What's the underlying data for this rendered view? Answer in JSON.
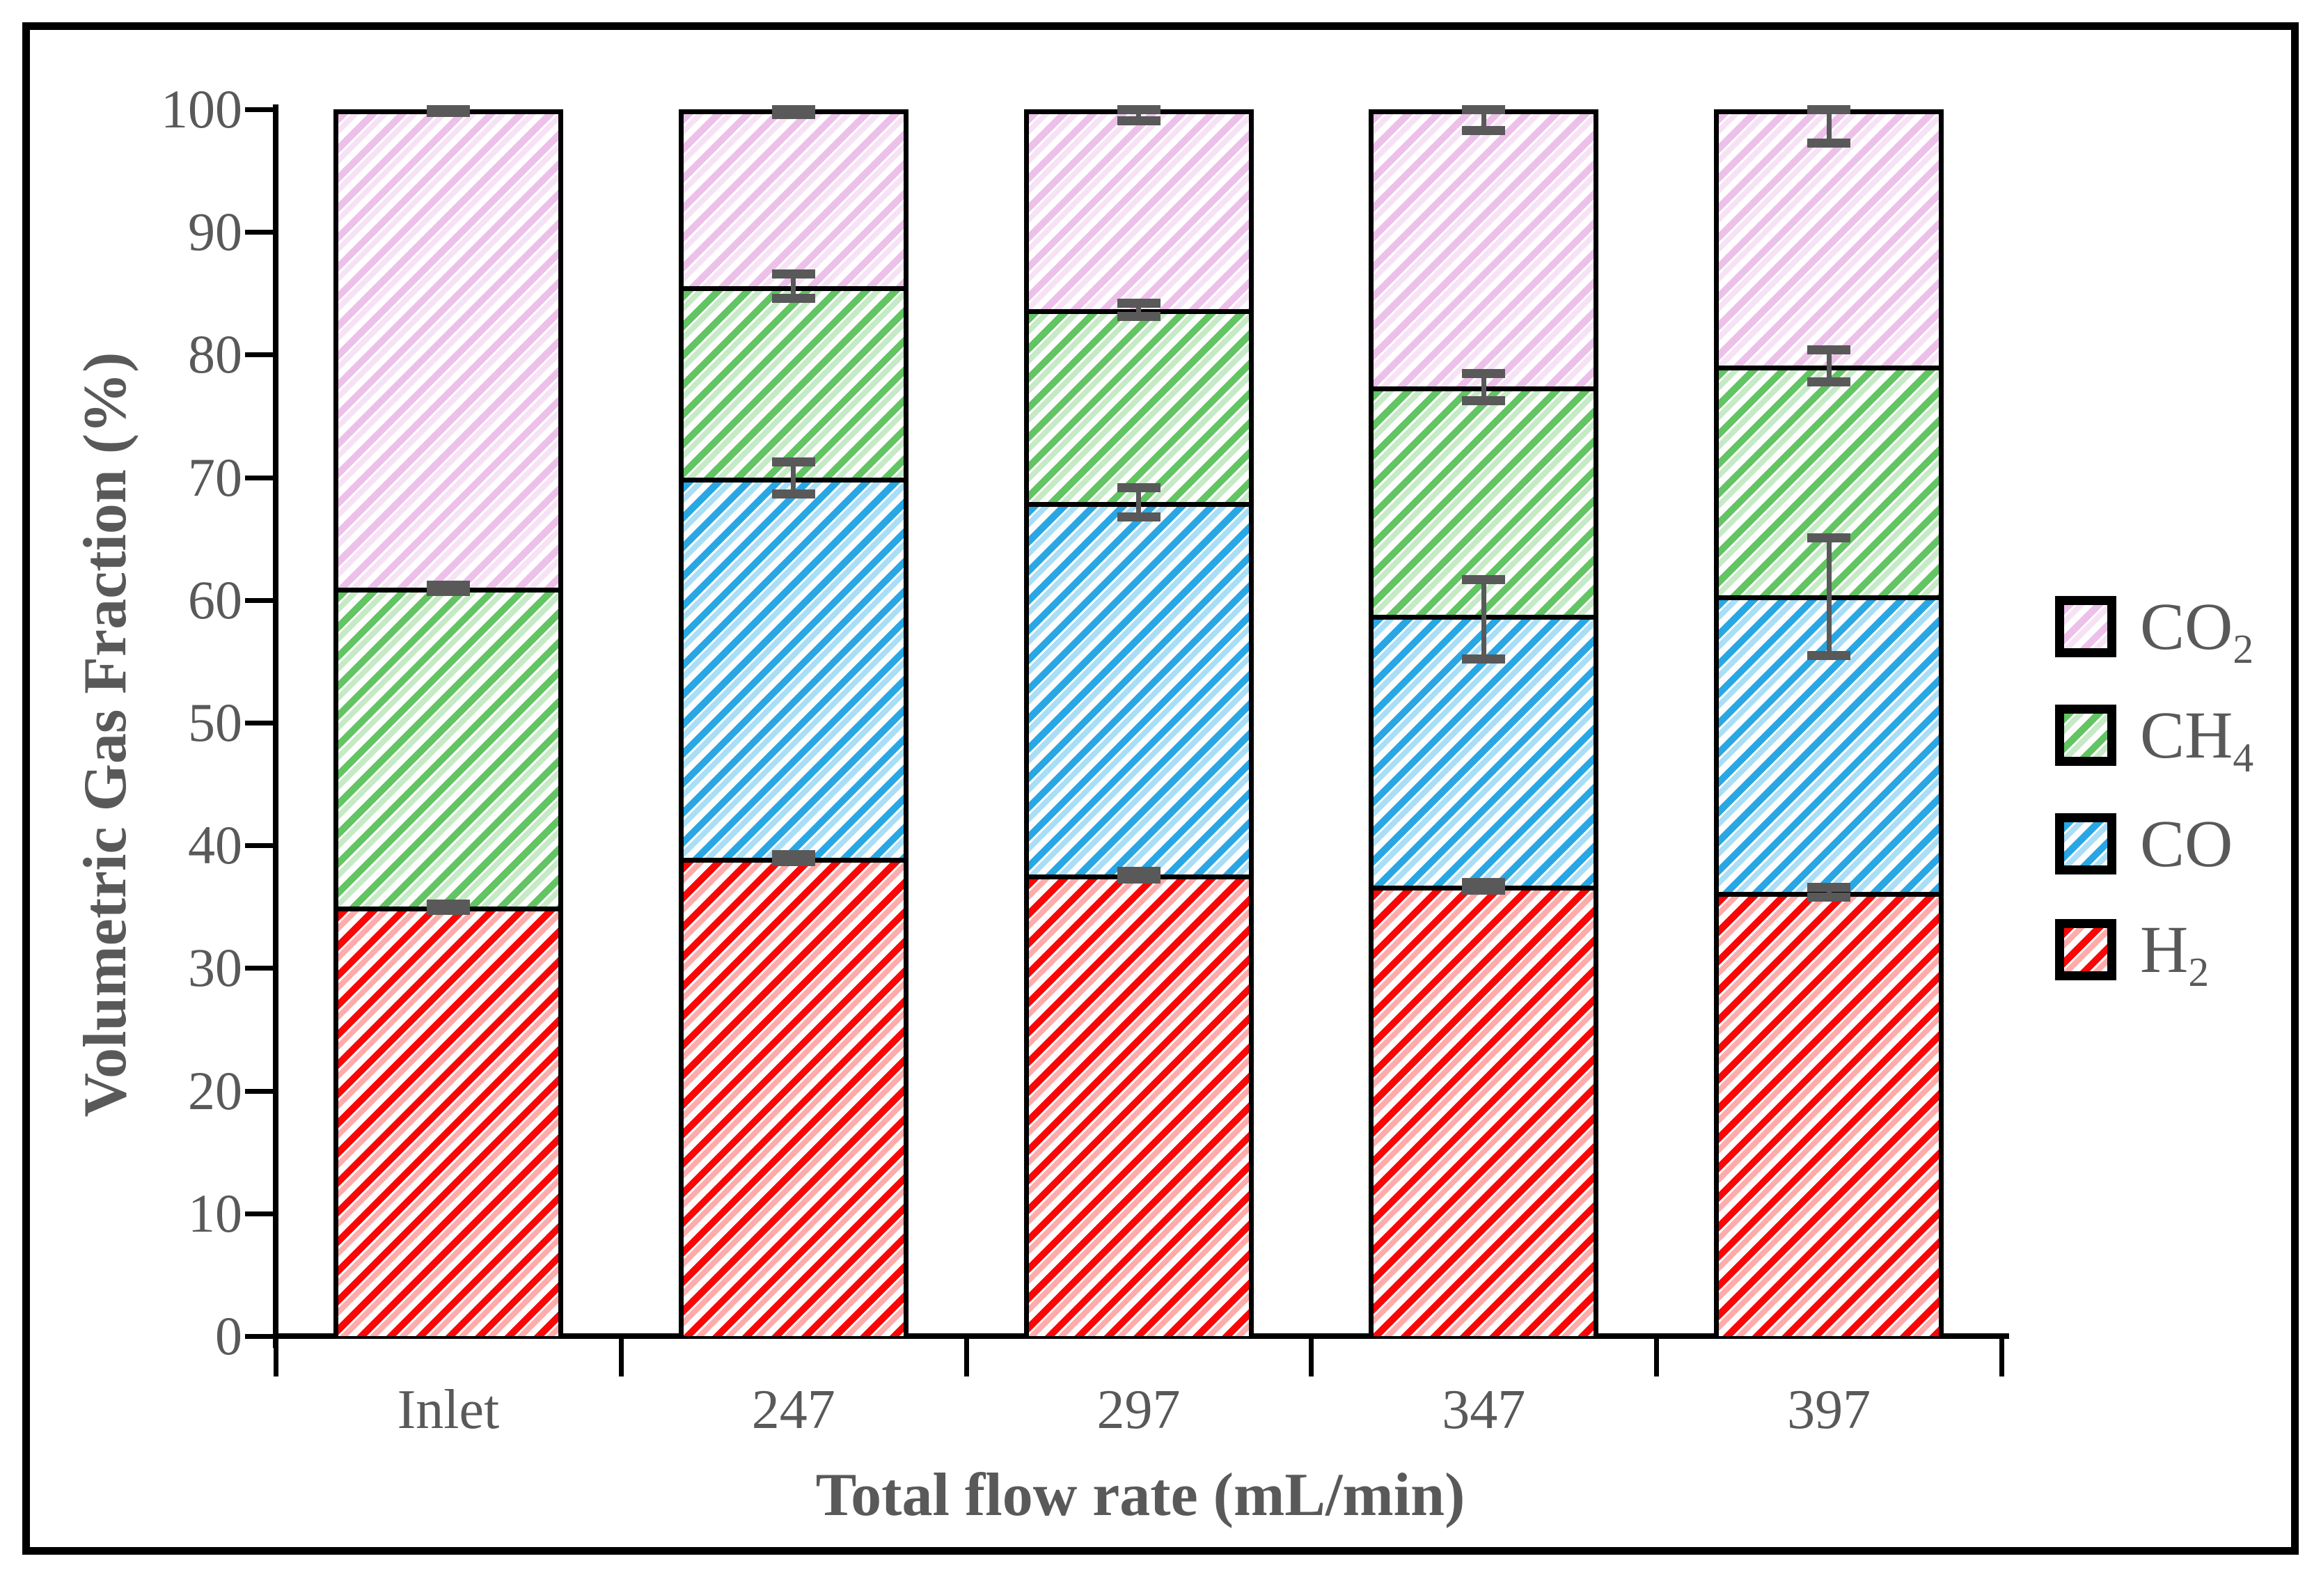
{
  "chart_data": {
    "type": "bar",
    "stacked": true,
    "title": "",
    "xlabel": "Total flow rate (mL/min)",
    "ylabel": "Volumetric Gas Fraction (%)",
    "ylim": [
      0,
      100
    ],
    "ytick_step": 10,
    "grid": false,
    "legend_position": "right",
    "categories": [
      "Inlet",
      "247",
      "297",
      "347",
      "397"
    ],
    "series": [
      {
        "key": "h2",
        "name": "H2",
        "label_base": "H",
        "label_sub": "2",
        "color": "#fb0606",
        "light": "#ffabab",
        "values": [
          35.0,
          39.0,
          37.6,
          36.7,
          36.2
        ]
      },
      {
        "key": "co",
        "name": "CO",
        "label_base": "CO",
        "label_sub": "",
        "color": "#29a7e4",
        "light": "#a9def6",
        "values": [
          0,
          31.0,
          30.4,
          22.1,
          24.2
        ]
      },
      {
        "key": "ch4",
        "name": "CH4",
        "label_base": "CH",
        "label_sub": "4",
        "color": "#62c462",
        "light": "#c6e9c6",
        "values": [
          26.0,
          15.6,
          15.7,
          18.6,
          18.7
        ]
      },
      {
        "key": "co2",
        "name": "CO2",
        "label_base": "CO",
        "label_sub": "2",
        "color": "#edc0ea",
        "light": "#f7e2f5",
        "values": [
          39.0,
          14.4,
          16.3,
          22.6,
          20.9
        ]
      }
    ],
    "stack_boundaries": {
      "Inlet": [
        35.0,
        61.0,
        100
      ],
      "247": [
        39.0,
        70.0,
        85.6,
        100
      ],
      "297": [
        37.6,
        68.0,
        83.7,
        100
      ],
      "347": [
        36.7,
        58.8,
        77.4,
        100
      ],
      "397": [
        36.2,
        60.4,
        79.1,
        100
      ]
    },
    "error_bars": [
      {
        "bar": 0,
        "at": 35.0,
        "minus": 0.25,
        "plus": 0.25
      },
      {
        "bar": 0,
        "at": 61.0,
        "minus": 0.25,
        "plus": 0.25
      },
      {
        "bar": 0,
        "at": 100,
        "minus": 0.2,
        "plus": 0
      },
      {
        "bar": 1,
        "at": 39.0,
        "minus": 0.3,
        "plus": 0.3
      },
      {
        "bar": 1,
        "at": 70.0,
        "minus": 1.3,
        "plus": 1.3
      },
      {
        "bar": 1,
        "at": 85.6,
        "minus": 1.0,
        "plus": 1.0
      },
      {
        "bar": 1,
        "at": 100,
        "minus": 0.4,
        "plus": 0
      },
      {
        "bar": 2,
        "at": 37.6,
        "minus": 0.3,
        "plus": 0.3
      },
      {
        "bar": 2,
        "at": 68.0,
        "minus": 1.2,
        "plus": 1.2
      },
      {
        "bar": 2,
        "at": 83.7,
        "minus": 0.55,
        "plus": 0.55
      },
      {
        "bar": 2,
        "at": 100,
        "minus": 0.9,
        "plus": 0
      },
      {
        "bar": 3,
        "at": 36.7,
        "minus": 0.3,
        "plus": 0.3
      },
      {
        "bar": 3,
        "at": 58.8,
        "minus": 3.6,
        "plus": 2.9
      },
      {
        "bar": 3,
        "at": 77.4,
        "minus": 1.1,
        "plus": 1.1
      },
      {
        "bar": 3,
        "at": 100,
        "minus": 1.7,
        "plus": 0
      },
      {
        "bar": 4,
        "at": 36.2,
        "minus": 0.4,
        "plus": 0.4
      },
      {
        "bar": 4,
        "at": 60.4,
        "minus": 4.9,
        "plus": 4.7
      },
      {
        "bar": 4,
        "at": 79.1,
        "minus": 1.3,
        "plus": 1.3
      },
      {
        "bar": 4,
        "at": 100,
        "minus": 2.7,
        "plus": 0
      }
    ],
    "legend": [
      {
        "key": "co2",
        "base": "CO",
        "sub": "2"
      },
      {
        "key": "ch4",
        "base": "CH",
        "sub": "4"
      },
      {
        "key": "co",
        "base": "CO",
        "sub": ""
      },
      {
        "key": "h2",
        "base": "H",
        "sub": "2"
      }
    ],
    "error_color": "#595959",
    "text_color": "#595959"
  }
}
